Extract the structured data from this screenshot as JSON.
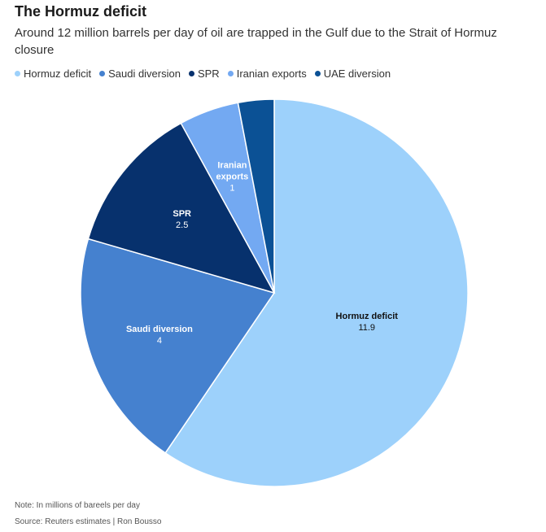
{
  "header": {
    "title": "The Hormuz deficit",
    "subtitle": "Around 12 million barrels per day of oil are trapped in the Gulf due to the Strait of Hormuz closure"
  },
  "chart_data": {
    "type": "pie",
    "slices": [
      {
        "name": "Hormuz deficit",
        "value": 11.9,
        "value_label": "11.9",
        "color": "#9dd1fb"
      },
      {
        "name": "Saudi diversion",
        "value": 4,
        "value_label": "4",
        "color": "#4581cf"
      },
      {
        "name": "SPR",
        "value": 2.5,
        "value_label": "2.5",
        "color": "#07316d"
      },
      {
        "name": "Iranian exports",
        "value": 1,
        "value_label": "1",
        "color": "#73a9f2"
      },
      {
        "name": "UAE diversion",
        "value": 0.6,
        "value_label": "",
        "color": "#0b5195"
      }
    ],
    "legend_position": "top-left",
    "start": "12 o'clock, clockwise"
  },
  "footer": {
    "note": "Note: In millions of bareels per day",
    "source": "Source: Reuters estimates | Ron Bousso"
  }
}
